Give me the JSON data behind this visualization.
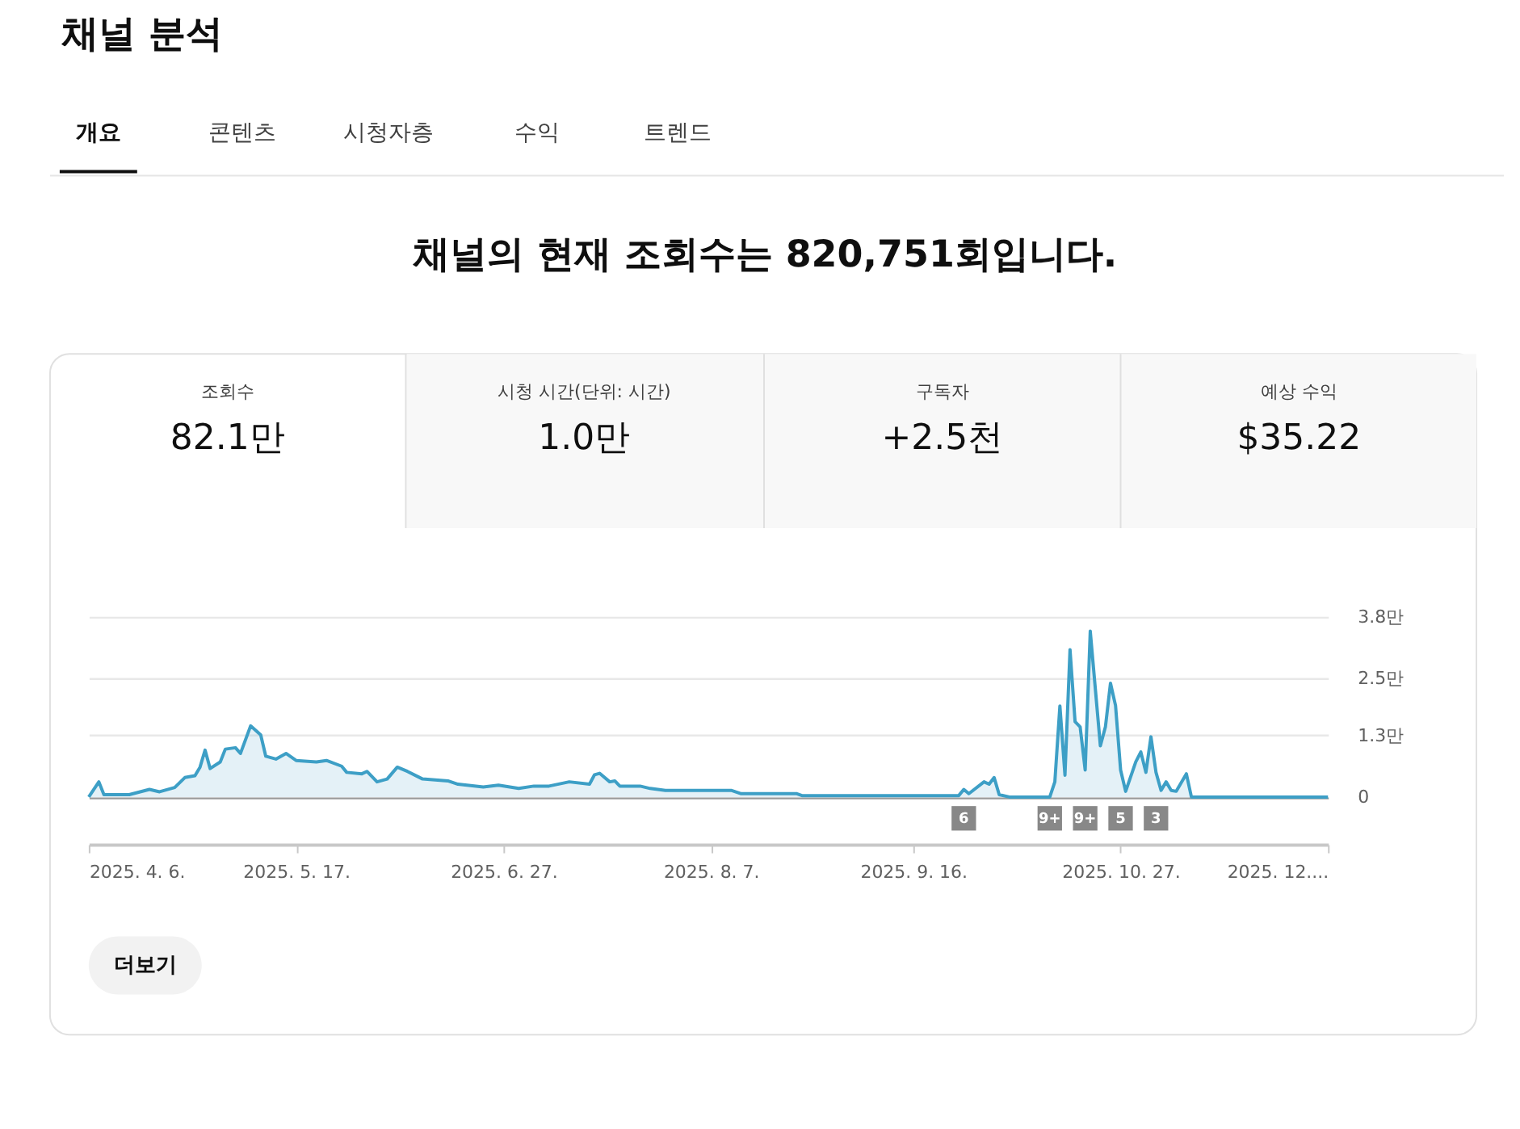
{
  "chart_data": {
    "type": "area",
    "title": "채널 분석",
    "subtitle": "채널의 현재 조회수는 820,751회입니다.",
    "annotations": [
      "개요",
      "콘텐츠",
      "시청자층",
      "수익",
      "트렌드",
      "조회수",
      "82.1만",
      "시청 시간(단위: 시간)",
      "1.0만",
      "구독자",
      "+2.5천",
      "예상 수익",
      "$35.22",
      "더보기",
      {
        "text": "6",
        "x": "2025-09-26",
        "y": -0.45
      },
      {
        "text": "9+",
        "x": "2025-10-13",
        "y": -0.45
      },
      {
        "text": "9+",
        "x": "2025-10-20",
        "y": -0.45
      },
      {
        "text": "5",
        "x": "2025-10-27",
        "y": -0.45
      },
      {
        "text": "3",
        "x": "2025-11-03",
        "y": -0.45
      }
    ],
    "x": [
      "2025-04-06",
      "2025-04-08",
      "2025-04-09",
      "2025-04-14",
      "2025-04-18",
      "2025-04-20",
      "2025-04-23",
      "2025-04-25",
      "2025-04-27",
      "2025-04-28",
      "2025-04-29",
      "2025-04-30",
      "2025-05-02",
      "2025-05-03",
      "2025-05-05",
      "2025-05-06",
      "2025-05-08",
      "2025-05-10",
      "2025-05-11",
      "2025-05-13",
      "2025-05-15",
      "2025-05-17",
      "2025-05-21",
      "2025-05-23",
      "2025-05-26",
      "2025-05-27",
      "2025-05-30",
      "2025-05-31",
      "2025-06-02",
      "2025-06-04",
      "2025-06-06",
      "2025-06-08",
      "2025-06-11",
      "2025-06-16",
      "2025-06-18",
      "2025-06-23",
      "2025-06-26",
      "2025-06-30",
      "2025-07-03",
      "2025-07-06",
      "2025-07-10",
      "2025-07-14",
      "2025-07-15",
      "2025-07-16",
      "2025-07-18",
      "2025-07-19",
      "2025-07-20",
      "2025-07-24",
      "2025-07-26",
      "2025-07-29",
      "2025-08-11",
      "2025-08-13",
      "2025-08-24",
      "2025-08-25",
      "2025-09-25",
      "2025-09-26",
      "2025-09-27",
      "2025-09-30",
      "2025-10-01",
      "2025-10-02",
      "2025-10-03",
      "2025-10-05",
      "2025-10-13",
      "2025-10-14",
      "2025-10-15",
      "2025-10-16",
      "2025-10-17",
      "2025-10-18",
      "2025-10-19",
      "2025-10-20",
      "2025-10-21",
      "2025-10-23",
      "2025-10-24",
      "2025-10-25",
      "2025-10-26",
      "2025-10-27",
      "2025-10-28",
      "2025-10-30",
      "2025-10-31",
      "2025-11-01",
      "2025-11-02",
      "2025-11-03",
      "2025-11-04",
      "2025-11-05",
      "2025-11-06",
      "2025-11-07",
      "2025-11-09",
      "2025-11-10",
      "2025-12-07"
    ],
    "series": [
      {
        "color": "#3d9fc6",
        "values": [
          0,
          0.32,
          0.05,
          0.05,
          0.16,
          0.11,
          0.2,
          0.41,
          0.45,
          0.63,
          0.99,
          0.6,
          0.74,
          1.01,
          1.04,
          0.92,
          1.5,
          1.31,
          0.86,
          0.8,
          0.92,
          0.77,
          0.74,
          0.77,
          0.65,
          0.52,
          0.49,
          0.54,
          0.32,
          0.38,
          0.63,
          0.54,
          0.38,
          0.34,
          0.27,
          0.21,
          0.25,
          0.18,
          0.23,
          0.23,
          0.32,
          0.27,
          0.47,
          0.5,
          0.32,
          0.34,
          0.23,
          0.23,
          0.18,
          0.14,
          0.14,
          0.07,
          0.07,
          0.03,
          0.03,
          0.16,
          0.07,
          0.32,
          0.27,
          0.41,
          0.05,
          0,
          0,
          0.32,
          1.92,
          0.46,
          3.11,
          1.59,
          1.48,
          0.57,
          3.5,
          1.08,
          1.48,
          2.4,
          1.93,
          0.57,
          0.12,
          0.74,
          0.95,
          0.52,
          1.27,
          0.52,
          0.14,
          0.32,
          0.14,
          0.12,
          0.49,
          0,
          0
        ]
      }
    ],
    "xlim": [
      "2025-04-06",
      "2025-12-07"
    ],
    "xticks": [
      {
        "value": "2025-04-06",
        "label": "2025. 4. 6."
      },
      {
        "value": "2025-05-17",
        "label": "2025. 5. 17."
      },
      {
        "value": "2025-06-27",
        "label": "2025. 6. 27."
      },
      {
        "value": "2025-08-07",
        "label": "2025. 8. 7."
      },
      {
        "value": "2025-09-16",
        "label": "2025. 9. 16."
      },
      {
        "value": "2025-10-27",
        "label": "2025. 10. 27."
      },
      {
        "value": "2025-12-07",
        "label": "2025. 12...."
      }
    ],
    "ylim": [
      -1.0,
      3.8
    ],
    "yticks": [
      0,
      {
        "value": 1.3,
        "label": "1.3만"
      },
      {
        "value": 2.5,
        "label": "2.5만"
      },
      {
        "value": 3.8,
        "label": "3.8만"
      }
    ],
    "grid": "y"
  }
}
